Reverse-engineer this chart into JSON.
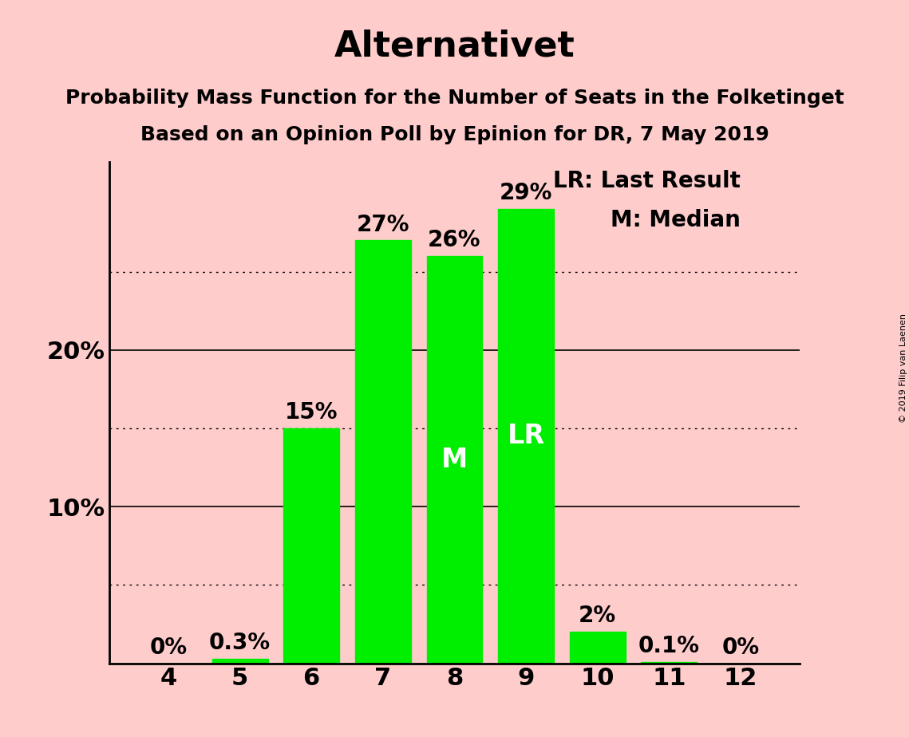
{
  "title": "Alternativet",
  "subtitle1": "Probability Mass Function for the Number of Seats in the Folketinget",
  "subtitle2": "Based on an Opinion Poll by Epinion for DR, 7 May 2019",
  "copyright": "© 2019 Filip van Laenen",
  "categories": [
    4,
    5,
    6,
    7,
    8,
    9,
    10,
    11,
    12
  ],
  "values": [
    0.0,
    0.3,
    15.0,
    27.0,
    26.0,
    29.0,
    2.0,
    0.1,
    0.0
  ],
  "bar_labels": [
    "0%",
    "0.3%",
    "15%",
    "27%",
    "26%",
    "29%",
    "2%",
    "0.1%",
    "0%"
  ],
  "bar_color": "#00ee00",
  "background_color": "#ffcccc",
  "median_bar": 8,
  "lr_bar": 9,
  "median_label": "M",
  "lr_label": "LR",
  "legend_lr": "LR: Last Result",
  "legend_m": "M: Median",
  "ylim": [
    0,
    32
  ],
  "solid_grid_yticks": [
    10,
    20
  ],
  "dotted_grid_yticks": [
    5,
    15,
    25
  ],
  "major_ytick_labels_values": [
    10,
    20
  ],
  "major_ytick_labels_text": [
    "10%",
    "20%"
  ],
  "title_fontsize": 32,
  "subtitle_fontsize": 18,
  "bar_label_fontsize": 20,
  "axis_tick_fontsize": 22,
  "inner_label_fontsize": 24,
  "legend_fontsize": 20,
  "bar_width": 0.78
}
